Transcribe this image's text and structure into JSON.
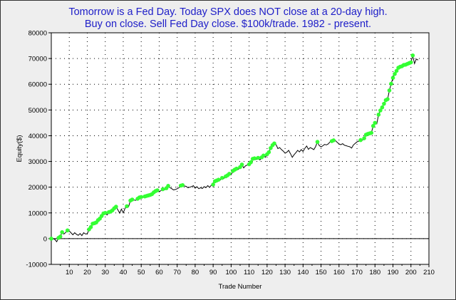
{
  "chart_data": {
    "type": "line",
    "title_lines": [
      "Tomorrow is a Fed Day. Today SPX does NOT close at a 20-day high.",
      "Buy on close. Sell Fed Day close. $100k/trade. 1982 - present."
    ],
    "xlabel": "Trade Number",
    "ylabel": "Equity($)",
    "xlim": [
      0,
      210
    ],
    "ylim": [
      -10000,
      80000
    ],
    "x_ticks": [
      10,
      20,
      30,
      40,
      50,
      60,
      70,
      80,
      90,
      100,
      110,
      120,
      130,
      140,
      150,
      160,
      170,
      180,
      190,
      200,
      210
    ],
    "y_ticks": [
      -10000,
      0,
      10000,
      20000,
      30000,
      40000,
      50000,
      60000,
      70000,
      80000
    ],
    "grid": true,
    "colors": {
      "line": "#000000",
      "new_high_marker": "#33ff33",
      "background": "#eeeeee",
      "plot_area": "#ffffff",
      "title": "#1d1dc8"
    },
    "series": [
      {
        "values": [
          [
            0,
            0
          ],
          [
            1,
            0
          ],
          [
            2,
            -300
          ],
          [
            3,
            -1200
          ],
          [
            4,
            300
          ],
          [
            5,
            800
          ],
          [
            6,
            2500
          ],
          [
            7,
            1800
          ],
          [
            8,
            2400
          ],
          [
            9,
            3200
          ],
          [
            10,
            3000
          ],
          [
            11,
            2200
          ],
          [
            12,
            1500
          ],
          [
            13,
            2300
          ],
          [
            14,
            1700
          ],
          [
            15,
            1300
          ],
          [
            16,
            2000
          ],
          [
            17,
            1200
          ],
          [
            18,
            2300
          ],
          [
            19,
            1800
          ],
          [
            20,
            1900
          ],
          [
            21,
            3600
          ],
          [
            22,
            4500
          ],
          [
            23,
            5800
          ],
          [
            24,
            6000
          ],
          [
            25,
            6300
          ],
          [
            26,
            7200
          ],
          [
            27,
            7800
          ],
          [
            28,
            8800
          ],
          [
            29,
            9800
          ],
          [
            30,
            10000
          ],
          [
            31,
            9200
          ],
          [
            32,
            10300
          ],
          [
            33,
            10500
          ],
          [
            34,
            11000
          ],
          [
            35,
            11800
          ],
          [
            36,
            12400
          ],
          [
            37,
            11200
          ],
          [
            38,
            9900
          ],
          [
            39,
            11500
          ],
          [
            40,
            10000
          ],
          [
            41,
            11800
          ],
          [
            42,
            12600
          ],
          [
            43,
            12400
          ],
          [
            44,
            14800
          ],
          [
            45,
            15200
          ],
          [
            46,
            15000
          ],
          [
            47,
            14900
          ],
          [
            48,
            15500
          ],
          [
            49,
            16000
          ],
          [
            50,
            16200
          ],
          [
            51,
            16000
          ],
          [
            52,
            16400
          ],
          [
            53,
            16600
          ],
          [
            54,
            16800
          ],
          [
            55,
            17000
          ],
          [
            56,
            17300
          ],
          [
            57,
            18000
          ],
          [
            58,
            18500
          ],
          [
            59,
            18800
          ],
          [
            60,
            18200
          ],
          [
            61,
            18700
          ],
          [
            62,
            19200
          ],
          [
            63,
            19000
          ],
          [
            64,
            19600
          ],
          [
            65,
            20500
          ],
          [
            66,
            19800
          ],
          [
            67,
            19400
          ],
          [
            68,
            18900
          ],
          [
            69,
            19100
          ],
          [
            70,
            19400
          ],
          [
            71,
            19800
          ],
          [
            72,
            20600
          ],
          [
            73,
            20800
          ],
          [
            74,
            20500
          ],
          [
            75,
            20300
          ],
          [
            76,
            19800
          ],
          [
            77,
            20000
          ],
          [
            78,
            20200
          ],
          [
            79,
            20600
          ],
          [
            80,
            19600
          ],
          [
            81,
            20200
          ],
          [
            82,
            19400
          ],
          [
            83,
            19800
          ],
          [
            84,
            19500
          ],
          [
            85,
            20200
          ],
          [
            86,
            19800
          ],
          [
            87,
            20600
          ],
          [
            88,
            19900
          ],
          [
            89,
            20800
          ],
          [
            90,
            21000
          ],
          [
            91,
            22300
          ],
          [
            92,
            22600
          ],
          [
            93,
            22900
          ],
          [
            94,
            22800
          ],
          [
            95,
            23600
          ],
          [
            96,
            23400
          ],
          [
            97,
            24200
          ],
          [
            98,
            24600
          ],
          [
            99,
            25200
          ],
          [
            100,
            24800
          ],
          [
            101,
            26300
          ],
          [
            102,
            26800
          ],
          [
            103,
            27200
          ],
          [
            104,
            26900
          ],
          [
            105,
            27800
          ],
          [
            106,
            28800
          ],
          [
            107,
            27500
          ],
          [
            108,
            28300
          ],
          [
            109,
            28600
          ],
          [
            110,
            28900
          ],
          [
            111,
            29700
          ],
          [
            112,
            31000
          ],
          [
            113,
            31200
          ],
          [
            114,
            30800
          ],
          [
            115,
            31400
          ],
          [
            116,
            30600
          ],
          [
            117,
            31600
          ],
          [
            118,
            32300
          ],
          [
            119,
            31600
          ],
          [
            120,
            32800
          ],
          [
            121,
            33600
          ],
          [
            122,
            35200
          ],
          [
            123,
            36300
          ],
          [
            124,
            37000
          ],
          [
            125,
            36500
          ],
          [
            126,
            35000
          ],
          [
            127,
            35400
          ],
          [
            128,
            34600
          ],
          [
            129,
            34000
          ],
          [
            130,
            33200
          ],
          [
            131,
            33600
          ],
          [
            132,
            34300
          ],
          [
            133,
            33000
          ],
          [
            134,
            31600
          ],
          [
            135,
            32600
          ],
          [
            136,
            33400
          ],
          [
            137,
            34300
          ],
          [
            138,
            33700
          ],
          [
            139,
            34600
          ],
          [
            140,
            33900
          ],
          [
            141,
            35100
          ],
          [
            142,
            36000
          ],
          [
            143,
            34700
          ],
          [
            144,
            35400
          ],
          [
            145,
            35000
          ],
          [
            146,
            34600
          ],
          [
            147,
            35800
          ],
          [
            148,
            37600
          ],
          [
            149,
            36200
          ],
          [
            150,
            35600
          ],
          [
            151,
            36100
          ],
          [
            152,
            36600
          ],
          [
            153,
            36400
          ],
          [
            154,
            36800
          ],
          [
            155,
            37600
          ],
          [
            156,
            37900
          ],
          [
            157,
            38200
          ],
          [
            158,
            38100
          ],
          [
            159,
            37400
          ],
          [
            160,
            36800
          ],
          [
            161,
            36500
          ],
          [
            162,
            36900
          ],
          [
            163,
            36300
          ],
          [
            164,
            36100
          ],
          [
            165,
            35900
          ],
          [
            166,
            35700
          ],
          [
            167,
            35200
          ],
          [
            168,
            36400
          ],
          [
            169,
            37000
          ],
          [
            170,
            37600
          ],
          [
            171,
            37900
          ],
          [
            172,
            38300
          ],
          [
            173,
            38200
          ],
          [
            174,
            39000
          ],
          [
            175,
            40400
          ],
          [
            176,
            40700
          ],
          [
            177,
            40900
          ],
          [
            178,
            41100
          ],
          [
            179,
            43800
          ],
          [
            180,
            45000
          ],
          [
            181,
            44600
          ],
          [
            182,
            48200
          ],
          [
            183,
            49800
          ],
          [
            184,
            51000
          ],
          [
            185,
            52400
          ],
          [
            186,
            53800
          ],
          [
            187,
            54200
          ],
          [
            188,
            57600
          ],
          [
            189,
            60200
          ],
          [
            190,
            62500
          ],
          [
            191,
            64000
          ],
          [
            192,
            65200
          ],
          [
            193,
            66400
          ],
          [
            194,
            66800
          ],
          [
            195,
            67000
          ],
          [
            196,
            67500
          ],
          [
            197,
            67600
          ],
          [
            198,
            67900
          ],
          [
            199,
            68200
          ],
          [
            200,
            68500
          ],
          [
            201,
            71200
          ],
          [
            202,
            68000
          ],
          [
            203,
            69800
          ],
          [
            204,
            69400
          ]
        ]
      }
    ]
  }
}
